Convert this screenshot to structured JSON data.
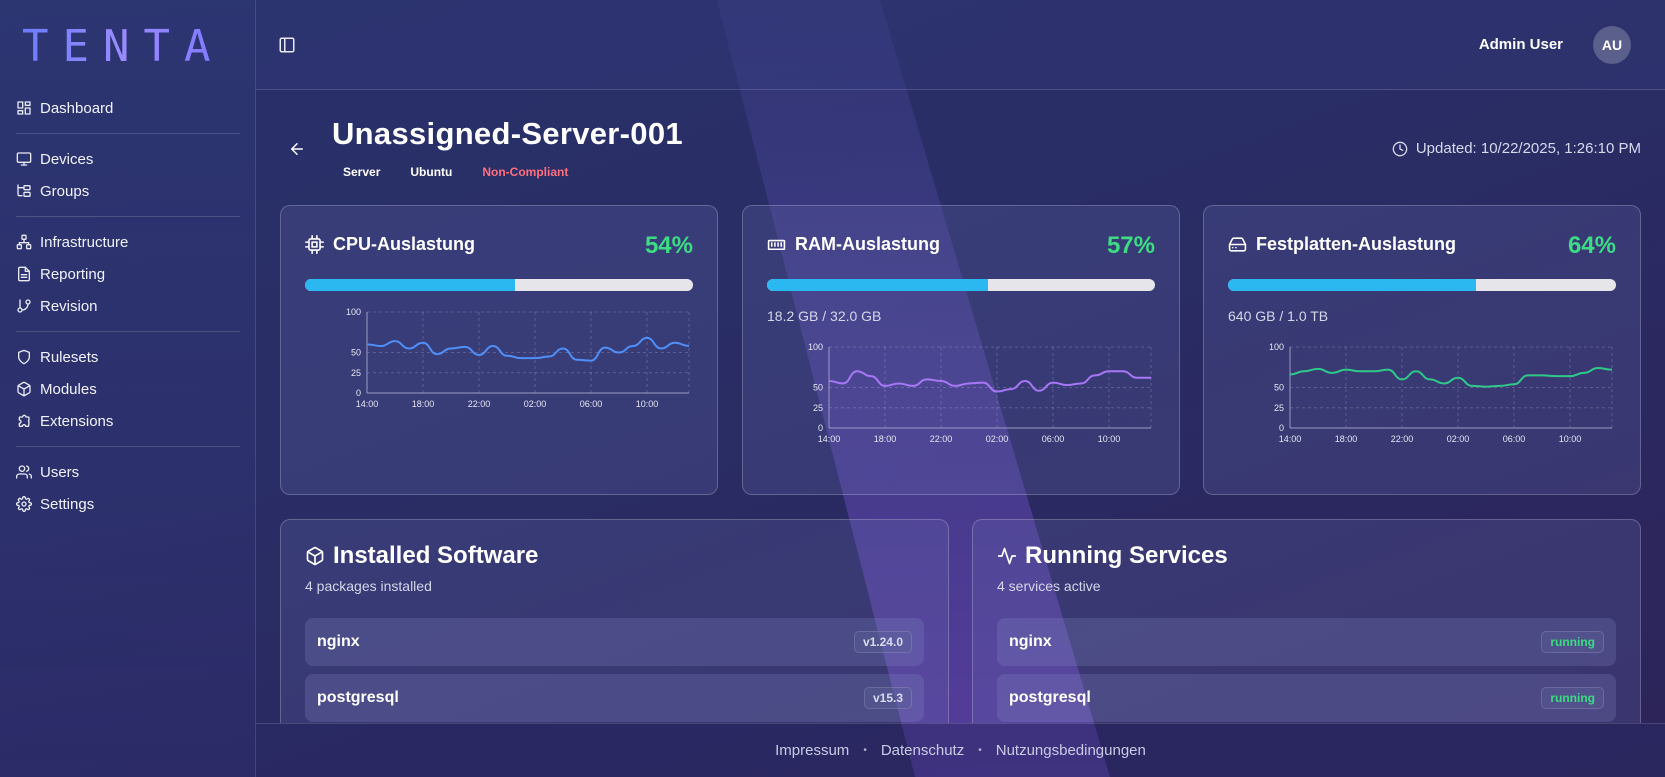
{
  "brand": {
    "logo": "TENTA"
  },
  "sidebar": {
    "groups": [
      [
        {
          "label": "Dashboard",
          "icon": "dashboard-icon"
        }
      ],
      [
        {
          "label": "Devices",
          "icon": "monitor-icon"
        },
        {
          "label": "Groups",
          "icon": "folder-tree-icon"
        }
      ],
      [
        {
          "label": "Infrastructure",
          "icon": "network-icon"
        },
        {
          "label": "Reporting",
          "icon": "document-icon"
        },
        {
          "label": "Revision",
          "icon": "git-branch-icon"
        }
      ],
      [
        {
          "label": "Rulesets",
          "icon": "shield-icon"
        },
        {
          "label": "Modules",
          "icon": "package-icon"
        },
        {
          "label": "Extensions",
          "icon": "puzzle-icon"
        }
      ],
      [
        {
          "label": "Users",
          "icon": "users-icon"
        },
        {
          "label": "Settings",
          "icon": "gear-icon"
        }
      ]
    ]
  },
  "header": {
    "user_name": "Admin User",
    "avatar_initials": "AU"
  },
  "device": {
    "name": "Unassigned-Server-001",
    "tags": [
      "Server",
      "Ubuntu",
      "Non-Compliant"
    ],
    "updated": "Updated: 10/22/2025, 1:26:10 PM"
  },
  "metrics": [
    {
      "title": "CPU-Auslastung",
      "percent": "54%",
      "fill": 0.54,
      "detail": "",
      "color": "#4f8ff7"
    },
    {
      "title": "RAM-Auslastung",
      "percent": "57%",
      "fill": 0.57,
      "detail": "18.2 GB / 32.0 GB",
      "color": "#a778f5"
    },
    {
      "title": "Festplatten-Auslastung",
      "percent": "64%",
      "fill": 0.64,
      "detail": "640 GB / 1.0 TB",
      "color": "#2fc98a"
    }
  ],
  "chart_data": [
    {
      "type": "line",
      "x": [
        "14:00",
        "15:00",
        "16:00",
        "17:00",
        "18:00",
        "19:00",
        "20:00",
        "21:00",
        "22:00",
        "23:00",
        "00:00",
        "01:00",
        "02:00",
        "03:00",
        "04:00",
        "05:00",
        "06:00",
        "07:00",
        "08:00",
        "09:00",
        "10:00",
        "11:00",
        "12:00",
        "13:00"
      ],
      "xticks": [
        "14:00",
        "18:00",
        "22:00",
        "02:00",
        "06:00",
        "10:00"
      ],
      "yticks": [
        0,
        25,
        50,
        100
      ],
      "ylim": [
        0,
        100
      ],
      "series": [
        {
          "values": [
            60,
            58,
            64,
            55,
            62,
            48,
            55,
            57,
            47,
            58,
            46,
            43,
            43,
            45,
            55,
            41,
            40,
            56,
            50,
            58,
            68,
            55,
            62,
            58
          ]
        }
      ]
    },
    {
      "type": "line",
      "x": [
        "14:00",
        "15:00",
        "16:00",
        "17:00",
        "18:00",
        "19:00",
        "20:00",
        "21:00",
        "22:00",
        "23:00",
        "00:00",
        "01:00",
        "02:00",
        "03:00",
        "04:00",
        "05:00",
        "06:00",
        "07:00",
        "08:00",
        "09:00",
        "10:00",
        "11:00",
        "12:00",
        "13:00"
      ],
      "xticks": [
        "14:00",
        "18:00",
        "22:00",
        "02:00",
        "06:00",
        "10:00"
      ],
      "yticks": [
        0,
        25,
        50,
        100
      ],
      "ylim": [
        0,
        100
      ],
      "series": [
        {
          "values": [
            58,
            55,
            70,
            64,
            52,
            55,
            52,
            60,
            58,
            52,
            55,
            56,
            45,
            48,
            58,
            46,
            56,
            53,
            55,
            65,
            70,
            70,
            62,
            62
          ]
        }
      ]
    },
    {
      "type": "line",
      "x": [
        "14:00",
        "15:00",
        "16:00",
        "17:00",
        "18:00",
        "19:00",
        "20:00",
        "21:00",
        "22:00",
        "23:00",
        "00:00",
        "01:00",
        "02:00",
        "03:00",
        "04:00",
        "05:00",
        "06:00",
        "07:00",
        "08:00",
        "09:00",
        "10:00",
        "11:00",
        "12:00",
        "13:00"
      ],
      "xticks": [
        "14:00",
        "18:00",
        "22:00",
        "02:00",
        "06:00",
        "10:00"
      ],
      "yticks": [
        0,
        25,
        50,
        100
      ],
      "ylim": [
        0,
        100
      ],
      "series": [
        {
          "values": [
            66,
            70,
            73,
            68,
            72,
            70,
            70,
            72,
            60,
            70,
            60,
            55,
            62,
            52,
            51,
            52,
            54,
            65,
            65,
            64,
            64,
            68,
            74,
            72
          ]
        }
      ]
    }
  ],
  "software": {
    "title": "Installed Software",
    "subtitle": "4 packages installed",
    "items": [
      {
        "name": "nginx",
        "version": "v1.24.0"
      },
      {
        "name": "postgresql",
        "version": "v15.3"
      }
    ]
  },
  "services": {
    "title": "Running Services",
    "subtitle": "4 services active",
    "items": [
      {
        "name": "nginx",
        "status": "running"
      },
      {
        "name": "postgresql",
        "status": "running"
      }
    ]
  },
  "footer": {
    "links": [
      "Impressum",
      "Datenschutz",
      "Nutzungsbedingungen"
    ]
  }
}
